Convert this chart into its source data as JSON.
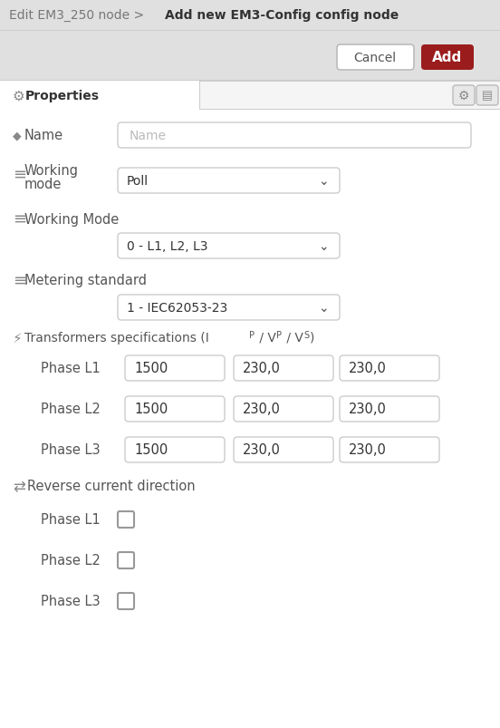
{
  "bg_color": "#ececec",
  "panel_bg": "#ffffff",
  "title_normal": "Edit EM3_250 node > ",
  "title_bold": "Add new EM3-Config config node",
  "cancel_text": "Cancel",
  "add_text": "Add",
  "add_btn_color": "#9b1c1c",
  "properties_text": "Properties",
  "name_placeholder": "Name",
  "working_mode_line1": "Working",
  "working_mode_line2": "mode",
  "poll_value": "Poll",
  "working_mode2": "Working Mode",
  "dropdown1": "0 - L1, L2, L3",
  "metering_label": "Metering standard",
  "dropdown2": "1 - IEC62053-23",
  "transformer_label": "Transformers specifications (I",
  "phase_rows": [
    "Phase L1",
    "Phase L2",
    "Phase L3"
  ],
  "phase_values": [
    [
      "1500",
      "230,0",
      "230,0"
    ],
    [
      "1500",
      "230,0",
      "230,0"
    ],
    [
      "1500",
      "230,0",
      "230,0"
    ]
  ],
  "reverse_label": "Reverse current direction",
  "checkbox_phases": [
    "Phase L1",
    "Phase L2",
    "Phase L3"
  ],
  "label_color": "#555555",
  "text_color": "#333333",
  "placeholder_color": "#bbbbbb",
  "border_color": "#cccccc",
  "icon_color": "#888888",
  "header_bg": "#e0e0e0",
  "tab_bg": "#f5f5f5",
  "white": "#ffffff"
}
